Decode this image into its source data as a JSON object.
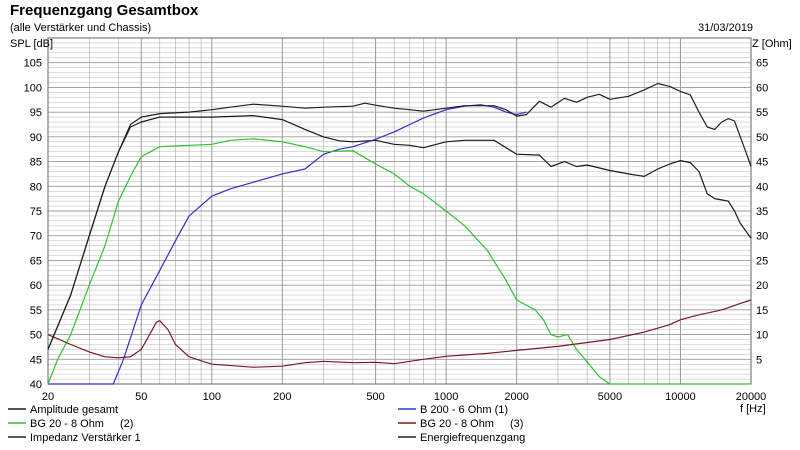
{
  "header": {
    "title": "Frequenzgang Gesamtbox",
    "subtitle": "(alle Verstärker und Chassis)",
    "date": "31/03/2019"
  },
  "colors": {
    "background": "#ffffff",
    "grid": "#9a9a9a",
    "black": "#1a1a1a",
    "blue": "#3030c8",
    "green": "#30c030",
    "red": "#7a1a20",
    "dark": "#202020"
  },
  "chart_data": {
    "type": "line",
    "title": "Frequenzgang Gesamtbox",
    "x_scale": "log",
    "xlabel": "f [Hz]",
    "ylabel_left": "SPL [dB]",
    "ylabel_right": "Z [Ohm]",
    "xlim": [
      20,
      20000
    ],
    "ylim_left": [
      40,
      110
    ],
    "ylim_right": [
      0,
      70
    ],
    "grid": true,
    "x_ticks": [
      "20",
      "50",
      "100",
      "200",
      "500",
      "1000",
      "2000",
      "5000",
      "10000",
      "20000"
    ],
    "y_ticks_left": [
      "40",
      "45",
      "50",
      "55",
      "60",
      "65",
      "70",
      "75",
      "80",
      "85",
      "90",
      "95",
      "100",
      "105"
    ],
    "y_ticks_right": [
      "5",
      "10",
      "15",
      "20",
      "25",
      "30",
      "35",
      "40",
      "45",
      "50",
      "55",
      "60",
      "65"
    ],
    "legend_position": "bottom",
    "series": [
      {
        "name": "Amplitude gesamt",
        "color_key": "black",
        "axis": "left",
        "points": [
          [
            20,
            47
          ],
          [
            25,
            58
          ],
          [
            30,
            70
          ],
          [
            35,
            80
          ],
          [
            40,
            87
          ],
          [
            45,
            92
          ],
          [
            50,
            93
          ],
          [
            60,
            94
          ],
          [
            80,
            94
          ],
          [
            100,
            94
          ],
          [
            150,
            94.3
          ],
          [
            200,
            93.5
          ],
          [
            250,
            91.5
          ],
          [
            300,
            90
          ],
          [
            350,
            89.2
          ],
          [
            400,
            89
          ],
          [
            500,
            89.3
          ],
          [
            600,
            88.5
          ],
          [
            700,
            88.3
          ],
          [
            800,
            87.8
          ],
          [
            1000,
            89
          ],
          [
            1200,
            89.3
          ],
          [
            1600,
            89.3
          ],
          [
            2000,
            86.5
          ],
          [
            2500,
            86.3
          ],
          [
            2800,
            84
          ],
          [
            3200,
            85
          ],
          [
            3600,
            84
          ],
          [
            4000,
            84.3
          ],
          [
            5000,
            83.2
          ],
          [
            6000,
            82.5
          ],
          [
            7000,
            82
          ],
          [
            8000,
            83.5
          ],
          [
            9000,
            84.5
          ],
          [
            10000,
            85.2
          ],
          [
            11000,
            84.8
          ],
          [
            12000,
            83
          ],
          [
            13000,
            78.5
          ],
          [
            14000,
            77.5
          ],
          [
            16000,
            77
          ],
          [
            17000,
            75
          ],
          [
            18000,
            72.5
          ],
          [
            20000,
            69.5
          ]
        ]
      },
      {
        "name": "B 200 - 6 Ohm (1)",
        "color_key": "blue",
        "axis": "left",
        "points": [
          [
            20,
            40
          ],
          [
            30,
            40
          ],
          [
            38,
            40
          ],
          [
            42,
            45
          ],
          [
            50,
            56
          ],
          [
            60,
            63
          ],
          [
            70,
            69
          ],
          [
            80,
            74
          ],
          [
            100,
            78
          ],
          [
            120,
            79.5
          ],
          [
            150,
            80.8
          ],
          [
            200,
            82.5
          ],
          [
            250,
            83.5
          ],
          [
            300,
            86.5
          ],
          [
            350,
            87.5
          ],
          [
            400,
            88
          ],
          [
            500,
            89.5
          ],
          [
            600,
            91
          ],
          [
            700,
            92.5
          ],
          [
            800,
            93.8
          ],
          [
            1000,
            95.5
          ],
          [
            1200,
            96.2
          ],
          [
            1400,
            96.5
          ],
          [
            1600,
            96
          ],
          [
            1800,
            95
          ],
          [
            2000,
            94.5
          ],
          [
            2200,
            95
          ]
        ]
      },
      {
        "name": "BG 20 - 8 Ohm (2)",
        "color_key": "green",
        "axis": "left",
        "points": [
          [
            20,
            40
          ],
          [
            22,
            45
          ],
          [
            25,
            50
          ],
          [
            30,
            60
          ],
          [
            35,
            68
          ],
          [
            40,
            77
          ],
          [
            45,
            82
          ],
          [
            50,
            86
          ],
          [
            60,
            88
          ],
          [
            80,
            88.3
          ],
          [
            100,
            88.5
          ],
          [
            120,
            89.3
          ],
          [
            150,
            89.6
          ],
          [
            200,
            89
          ],
          [
            250,
            88
          ],
          [
            300,
            87
          ],
          [
            400,
            87.2
          ],
          [
            500,
            84.5
          ],
          [
            600,
            82.5
          ],
          [
            700,
            80
          ],
          [
            800,
            78.5
          ],
          [
            1000,
            75
          ],
          [
            1200,
            72
          ],
          [
            1500,
            67
          ],
          [
            1800,
            61
          ],
          [
            2000,
            57
          ],
          [
            2400,
            55
          ],
          [
            2600,
            53
          ],
          [
            2800,
            50
          ],
          [
            3000,
            49.5
          ],
          [
            3300,
            50
          ],
          [
            3600,
            47
          ],
          [
            4000,
            44.5
          ],
          [
            4500,
            41.5
          ],
          [
            5000,
            40
          ],
          [
            20000,
            40
          ]
        ]
      },
      {
        "name": "BG 20 - 8 Ohm (3)",
        "color_key": "red",
        "axis": "right",
        "points": [
          [
            20,
            10
          ],
          [
            25,
            8
          ],
          [
            30,
            6.5
          ],
          [
            35,
            5.5
          ],
          [
            40,
            5.3
          ],
          [
            45,
            5.5
          ],
          [
            50,
            7
          ],
          [
            55,
            10.5
          ],
          [
            58,
            12.5
          ],
          [
            60,
            12.8
          ],
          [
            65,
            11
          ],
          [
            70,
            8
          ],
          [
            80,
            5.5
          ],
          [
            100,
            4
          ],
          [
            150,
            3.4
          ],
          [
            200,
            3.6
          ],
          [
            250,
            4.3
          ],
          [
            300,
            4.6
          ],
          [
            400,
            4.3
          ],
          [
            500,
            4.4
          ],
          [
            600,
            4.1
          ],
          [
            800,
            5
          ],
          [
            1000,
            5.6
          ],
          [
            1500,
            6.2
          ],
          [
            2000,
            6.8
          ],
          [
            3000,
            7.6
          ],
          [
            5000,
            9
          ],
          [
            7000,
            10.5
          ],
          [
            9000,
            12
          ],
          [
            10000,
            13
          ],
          [
            12000,
            14
          ],
          [
            15000,
            15
          ],
          [
            18000,
            16.3
          ],
          [
            20000,
            17
          ]
        ]
      },
      {
        "name": "Impedanz Verstärker 1",
        "color_key": "dark",
        "axis": "right",
        "points": [
          [
            20,
            12
          ],
          [
            100,
            12
          ]
        ]
      },
      {
        "name": "Energiefrequenzgang",
        "color_key": "dark",
        "axis": "left",
        "points": [
          [
            20,
            47
          ],
          [
            25,
            58
          ],
          [
            30,
            70
          ],
          [
            35,
            80
          ],
          [
            40,
            87
          ],
          [
            45,
            92.5
          ],
          [
            50,
            94
          ],
          [
            60,
            94.7
          ],
          [
            80,
            95
          ],
          [
            100,
            95.5
          ],
          [
            120,
            96
          ],
          [
            150,
            96.6
          ],
          [
            200,
            96.2
          ],
          [
            250,
            95.8
          ],
          [
            300,
            96
          ],
          [
            400,
            96.2
          ],
          [
            450,
            96.8
          ],
          [
            500,
            96.4
          ],
          [
            600,
            95.8
          ],
          [
            700,
            95.5
          ],
          [
            800,
            95.2
          ],
          [
            1000,
            95.8
          ],
          [
            1200,
            96.3
          ],
          [
            1600,
            96.3
          ],
          [
            1800,
            95.5
          ],
          [
            2000,
            94.2
          ],
          [
            2200,
            94.5
          ],
          [
            2500,
            97.2
          ],
          [
            2800,
            96
          ],
          [
            3200,
            97.8
          ],
          [
            3600,
            97
          ],
          [
            4000,
            98
          ],
          [
            4500,
            98.6
          ],
          [
            5000,
            97.6
          ],
          [
            6000,
            98.2
          ],
          [
            7000,
            99.5
          ],
          [
            8000,
            100.8
          ],
          [
            9000,
            100.2
          ],
          [
            10000,
            99.2
          ],
          [
            11000,
            98.5
          ],
          [
            12000,
            95
          ],
          [
            13000,
            92
          ],
          [
            14000,
            91.5
          ],
          [
            15000,
            93
          ],
          [
            16000,
            93.7
          ],
          [
            17000,
            93.2
          ],
          [
            18000,
            90
          ],
          [
            19000,
            87
          ],
          [
            20000,
            84
          ]
        ]
      }
    ]
  }
}
